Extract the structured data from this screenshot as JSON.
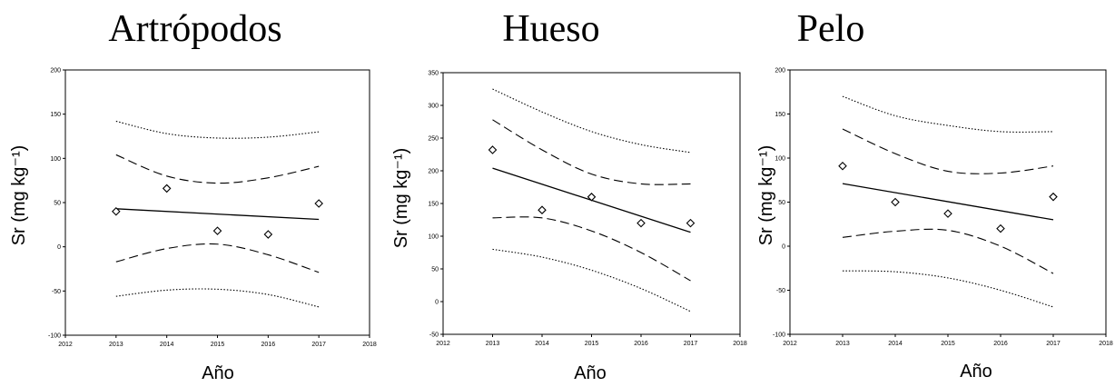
{
  "chart_data": [
    {
      "type": "scatter",
      "title": "Artrópodos",
      "xlabel": "Año",
      "ylabel": "Sr (mg kg-1)",
      "xlim": [
        2012,
        2018
      ],
      "ylim": [
        -100,
        200
      ],
      "xticks": [
        "2012",
        "2013",
        "2014",
        "2015",
        "2016",
        "2017",
        "2018"
      ],
      "yticks": [
        "200",
        "150",
        "100",
        "50",
        "0",
        "-50",
        "-100"
      ],
      "grid": false,
      "points": {
        "x": [
          2013,
          2014,
          2015,
          2016,
          2017
        ],
        "y": [
          40,
          66,
          18,
          14,
          49
        ]
      },
      "fit": {
        "x": [
          2013,
          2017
        ],
        "y": [
          43,
          31
        ]
      },
      "ci_upper": {
        "x": [
          2013,
          2014,
          2015,
          2016,
          2017
        ],
        "y": [
          104,
          80,
          72,
          78,
          91
        ]
      },
      "ci_lower": {
        "x": [
          2013,
          2014,
          2015,
          2016,
          2017
        ],
        "y": [
          -17,
          -2,
          3,
          -9,
          -29
        ]
      },
      "pi_upper": {
        "x": [
          2013,
          2014,
          2015,
          2016,
          2017
        ],
        "y": [
          142,
          128,
          123,
          124,
          130
        ]
      },
      "pi_lower": {
        "x": [
          2013,
          2014,
          2015,
          2016,
          2017
        ],
        "y": [
          -56,
          -49,
          -48,
          -54,
          -68
        ]
      }
    },
    {
      "type": "scatter",
      "title": "Hueso",
      "xlabel": "Año",
      "ylabel": "Sr (mg kg-1)",
      "xlim": [
        2012,
        2018
      ],
      "ylim": [
        -50,
        350
      ],
      "xticks": [
        "2012",
        "2013",
        "2014",
        "2015",
        "2016",
        "2017",
        "2018"
      ],
      "yticks": [
        "350",
        "300",
        "250",
        "200",
        "150",
        "100",
        "50",
        "0",
        "-50"
      ],
      "grid": false,
      "points": {
        "x": [
          2013,
          2014,
          2015,
          2016,
          2017
        ],
        "y": [
          232,
          140,
          160,
          120,
          120
        ]
      },
      "fit": {
        "x": [
          2013,
          2017
        ],
        "y": [
          204,
          106
        ]
      },
      "ci_upper": {
        "x": [
          2013,
          2014,
          2015,
          2016,
          2017
        ],
        "y": [
          278,
          232,
          195,
          180,
          180
        ]
      },
      "ci_lower": {
        "x": [
          2013,
          2014,
          2015,
          2016,
          2017
        ],
        "y": [
          128,
          128,
          108,
          75,
          32
        ]
      },
      "pi_upper": {
        "x": [
          2013,
          2014,
          2015,
          2016,
          2017
        ],
        "y": [
          325,
          290,
          260,
          240,
          228
        ]
      },
      "pi_lower": {
        "x": [
          2013,
          2014,
          2015,
          2016,
          2017
        ],
        "y": [
          80,
          68,
          48,
          20,
          -15
        ]
      }
    },
    {
      "type": "scatter",
      "title": "Pelo",
      "xlabel": "Año",
      "ylabel": "Sr (mg kg-1)",
      "xlim": [
        2012,
        2018
      ],
      "ylim": [
        -100,
        200
      ],
      "xticks": [
        "2012",
        "2013",
        "2014",
        "2015",
        "2016",
        "2017",
        "2018"
      ],
      "yticks": [
        "200",
        "150",
        "100",
        "50",
        "0",
        "-50",
        "-100"
      ],
      "grid": false,
      "points": {
        "x": [
          2013,
          2014,
          2015,
          2016,
          2017
        ],
        "y": [
          91,
          50,
          37,
          20,
          56
        ]
      },
      "fit": {
        "x": [
          2013,
          2017
        ],
        "y": [
          71,
          30
        ]
      },
      "ci_upper": {
        "x": [
          2013,
          2014,
          2015,
          2016,
          2017
        ],
        "y": [
          133,
          105,
          85,
          83,
          91
        ]
      },
      "ci_lower": {
        "x": [
          2013,
          2014,
          2015,
          2016,
          2017
        ],
        "y": [
          10,
          17,
          18,
          0,
          -31
        ]
      },
      "pi_upper": {
        "x": [
          2013,
          2014,
          2015,
          2016,
          2017
        ],
        "y": [
          170,
          148,
          137,
          130,
          130
        ]
      },
      "pi_lower": {
        "x": [
          2013,
          2014,
          2015,
          2016,
          2017
        ],
        "y": [
          -28,
          -29,
          -36,
          -50,
          -69
        ]
      }
    }
  ]
}
